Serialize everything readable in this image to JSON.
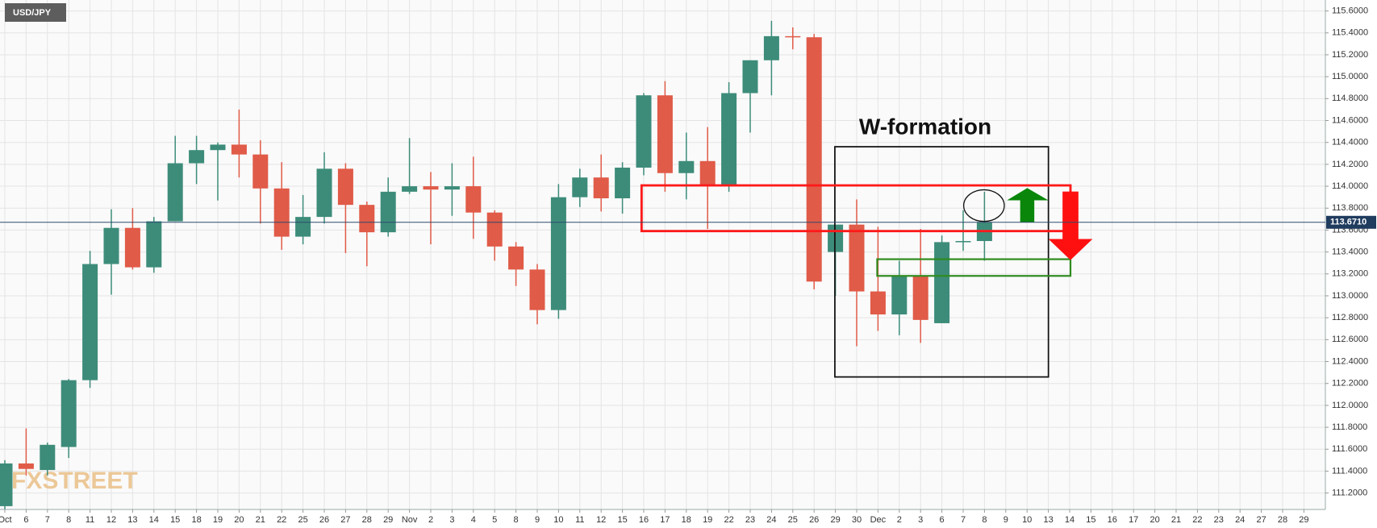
{
  "chart_data": {
    "type": "candlestick",
    "title": "USD/JPY",
    "watermark": "FXSTREET",
    "annotation": "W-formation",
    "categories": [
      "Oct",
      "6",
      "7",
      "8",
      "11",
      "12",
      "13",
      "14",
      "15",
      "18",
      "19",
      "20",
      "21",
      "22",
      "25",
      "26",
      "27",
      "28",
      "29",
      "Nov",
      "2",
      "3",
      "4",
      "5",
      "8",
      "9",
      "10",
      "11",
      "12",
      "15",
      "16",
      "17",
      "18",
      "19",
      "22",
      "23",
      "24",
      "25",
      "26",
      "29",
      "30",
      "Dec",
      "2",
      "3",
      "6",
      "7",
      "8",
      "9",
      "10",
      "13",
      "14",
      "15",
      "16",
      "17",
      "20",
      "21",
      "22",
      "23",
      "24",
      "27",
      "28",
      "29"
    ],
    "open": [
      111.08,
      111.47,
      111.41,
      111.62,
      112.23,
      113.29,
      113.62,
      113.26,
      113.68,
      114.21,
      114.33,
      114.38,
      114.29,
      113.98,
      113.54,
      113.72,
      114.16,
      113.83,
      113.58,
      113.95,
      114.0,
      113.97,
      114.0,
      113.76,
      113.45,
      113.24,
      112.87,
      113.9,
      114.08,
      113.89,
      114.17,
      114.83,
      114.12,
      114.23,
      114.01,
      114.85,
      115.15,
      115.37,
      115.36,
      113.4,
      113.65,
      113.04,
      112.83,
      113.18,
      112.75,
      113.49,
      113.5,
      null,
      null,
      null,
      null,
      null,
      null,
      null,
      null,
      null,
      null,
      null,
      null,
      null,
      null,
      null
    ],
    "high": [
      111.5,
      111.79,
      111.66,
      112.24,
      113.41,
      113.79,
      113.8,
      113.72,
      114.46,
      114.46,
      114.4,
      114.7,
      114.42,
      114.22,
      113.92,
      114.31,
      114.21,
      113.86,
      114.08,
      114.44,
      114.13,
      114.21,
      114.27,
      113.78,
      113.49,
      113.29,
      114.02,
      114.16,
      114.29,
      114.22,
      114.85,
      114.96,
      114.49,
      114.54,
      114.95,
      115.15,
      115.51,
      115.45,
      115.39,
      113.65,
      113.88,
      113.63,
      113.32,
      113.61,
      113.55,
      113.78,
      113.95,
      null,
      null,
      null,
      null,
      null,
      null,
      null,
      null,
      null,
      null,
      null,
      null,
      null,
      null,
      null
    ],
    "low": [
      111.05,
      111.36,
      111.36,
      111.52,
      112.16,
      113.01,
      113.24,
      113.21,
      113.68,
      114.02,
      113.87,
      114.08,
      113.66,
      113.42,
      113.47,
      113.66,
      113.39,
      113.27,
      113.54,
      113.93,
      113.47,
      113.73,
      113.52,
      113.32,
      113.09,
      112.74,
      112.79,
      113.81,
      113.77,
      113.75,
      114.1,
      113.95,
      113.88,
      113.61,
      113.95,
      114.49,
      114.83,
      115.25,
      113.06,
      113.0,
      112.54,
      112.68,
      112.64,
      112.57,
      112.75,
      113.41,
      113.32,
      null,
      null,
      null,
      null,
      null,
      null,
      null,
      null,
      null,
      null,
      null,
      null,
      null,
      null,
      null
    ],
    "close": [
      111.47,
      111.42,
      111.64,
      112.23,
      113.29,
      113.62,
      113.26,
      113.68,
      114.21,
      114.33,
      114.38,
      114.29,
      113.98,
      113.54,
      113.72,
      114.16,
      113.83,
      113.58,
      113.95,
      114.0,
      113.97,
      114.0,
      113.76,
      113.45,
      113.24,
      112.87,
      113.9,
      114.08,
      113.89,
      114.17,
      114.83,
      114.12,
      114.23,
      114.01,
      114.85,
      115.15,
      115.37,
      115.36,
      113.13,
      113.65,
      113.04,
      112.83,
      113.18,
      112.78,
      113.49,
      113.5,
      113.67,
      null,
      null,
      null,
      null,
      null,
      null,
      null,
      null,
      null,
      null,
      null,
      null,
      null,
      null,
      null
    ],
    "up_color": "#3d8c7a",
    "down_color": "#e05b48",
    "ylim": [
      111.05,
      115.7
    ],
    "yticks": [
      {
        "value": 111.2,
        "label": "111.2000"
      },
      {
        "value": 111.4,
        "label": "111.4000"
      },
      {
        "value": 111.6,
        "label": "111.6000"
      },
      {
        "value": 111.8,
        "label": "111.8000"
      },
      {
        "value": 112.0,
        "label": "112.0000"
      },
      {
        "value": 112.2,
        "label": "112.2000"
      },
      {
        "value": 112.4,
        "label": "112.4000"
      },
      {
        "value": 112.6,
        "label": "112.6000"
      },
      {
        "value": 112.8,
        "label": "112.8000"
      },
      {
        "value": 113.0,
        "label": "113.0000"
      },
      {
        "value": 113.2,
        "label": "113.2000"
      },
      {
        "value": 113.4,
        "label": "113.4000"
      },
      {
        "value": 113.6,
        "label": "113.6000"
      },
      {
        "value": 113.8,
        "label": "113.8000"
      },
      {
        "value": 114.0,
        "label": "114.0000"
      },
      {
        "value": 114.2,
        "label": "114.2000"
      },
      {
        "value": 114.4,
        "label": "114.4000"
      },
      {
        "value": 114.6,
        "label": "114.6000"
      },
      {
        "value": 114.8,
        "label": "114.8000"
      },
      {
        "value": 115.0,
        "label": "115.0000"
      },
      {
        "value": 115.2,
        "label": "115.2000"
      },
      {
        "value": 115.4,
        "label": "115.4000"
      },
      {
        "value": 115.6,
        "label": "115.6000"
      }
    ],
    "last_price": {
      "value": 113.671,
      "label": "113.6710"
    },
    "grid": true
  }
}
